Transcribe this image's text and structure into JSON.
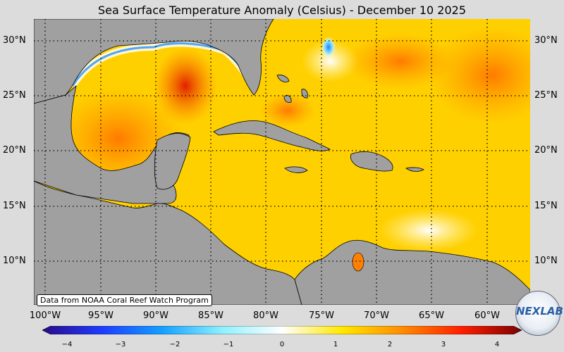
{
  "title": "Sea Surface Temperature Anomaly (Celsius) - December 10 2025",
  "credit": "Data from NOAA Coral Reef Watch Program",
  "latitude_labels": [
    "30°N",
    "25°N",
    "20°N",
    "15°N",
    "10°N"
  ],
  "longitude_labels": [
    "100°W",
    "95°W",
    "90°W",
    "85°W",
    "80°W",
    "75°W",
    "70°W",
    "65°W",
    "60°W"
  ],
  "colorbar": {
    "ticks": [
      "−4",
      "−3",
      "−2",
      "−1",
      "0",
      "1",
      "2",
      "3",
      "4"
    ],
    "range": [
      -4,
      4
    ],
    "colors": [
      "#2a0a8a",
      "#1e3cff",
      "#14a0ff",
      "#8ff0ff",
      "#ffffff",
      "#ffe800",
      "#ff8c00",
      "#ff1e00",
      "#7a0000"
    ]
  },
  "logo_text": "NEXLAB",
  "colors": {
    "land": "#a0a0a0",
    "background": "#dcdcdc",
    "ocean_dominant": "#ffd000"
  }
}
